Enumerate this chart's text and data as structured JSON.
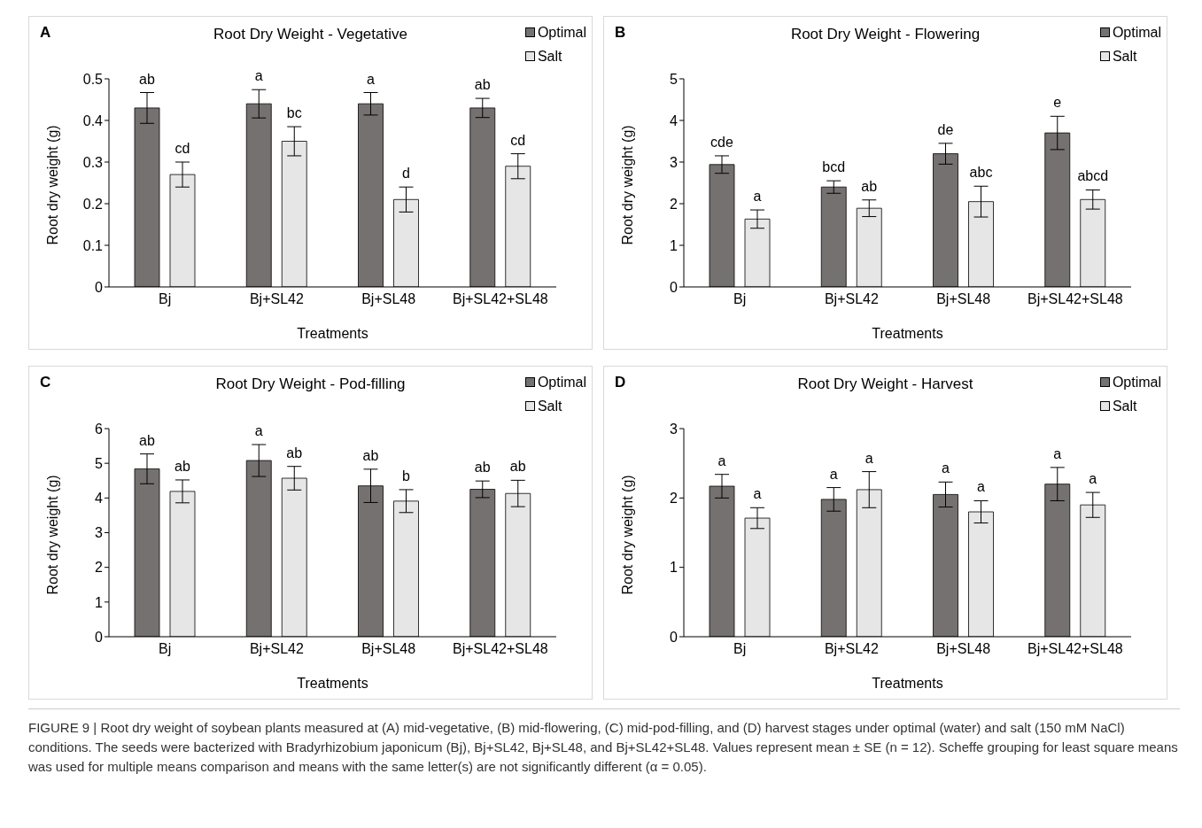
{
  "chart_data": [
    {
      "type": "bar",
      "title": "Root Dry Weight - Vegetative",
      "xlabel": "Treatments",
      "ylabel": "Root dry weight (g)",
      "annotations": [
        "A"
      ],
      "categories": [
        "Bj",
        "Bj+SL42",
        "Bj+SL48",
        "Bj+SL42+SL48"
      ],
      "ylim": [
        0,
        0.5
      ],
      "yticks": [
        0,
        0.1,
        0.2,
        0.3,
        0.4,
        0.5
      ],
      "legend": "top right",
      "series": [
        {
          "name": "Optimal",
          "color": "#767171",
          "values": [
            0.43,
            0.44,
            0.44,
            0.43
          ],
          "errors": [
            0.037,
            0.034,
            0.027,
            0.023
          ],
          "value_labels": [
            "ab",
            "a",
            "a",
            "ab"
          ]
        },
        {
          "name": "Salt",
          "color": "#e7e6e6",
          "values": [
            0.27,
            0.35,
            0.21,
            0.29
          ],
          "errors": [
            0.03,
            0.035,
            0.03,
            0.03
          ],
          "value_labels": [
            "cd",
            "bc",
            "d",
            "cd"
          ]
        }
      ]
    },
    {
      "type": "bar",
      "title": "Root Dry Weight - Flowering",
      "xlabel": "Treatments",
      "ylabel": "Root dry weight (g)",
      "annotations": [
        "B"
      ],
      "categories": [
        "Bj",
        "Bj+SL42",
        "Bj+SL48",
        "Bj+SL42+SL48"
      ],
      "ylim": [
        0,
        5
      ],
      "yticks": [
        0,
        1,
        2,
        3,
        4,
        5
      ],
      "legend": "top right",
      "series": [
        {
          "name": "Optimal",
          "color": "#767171",
          "values": [
            2.94,
            2.4,
            3.2,
            3.7
          ],
          "errors": [
            0.21,
            0.15,
            0.25,
            0.4
          ],
          "value_labels": [
            "cde",
            "bcd",
            "de",
            "e"
          ]
        },
        {
          "name": "Salt",
          "color": "#e7e6e6",
          "values": [
            1.63,
            1.89,
            2.05,
            2.1
          ],
          "errors": [
            0.22,
            0.2,
            0.37,
            0.23
          ],
          "value_labels": [
            "a",
            "ab",
            "abc",
            "abcd"
          ]
        }
      ]
    },
    {
      "type": "bar",
      "title": "Root Dry Weight - Pod-filling",
      "xlabel": "Treatments",
      "ylabel": "Root dry weight (g)",
      "annotations": [
        "C"
      ],
      "categories": [
        "Bj",
        "Bj+SL42",
        "Bj+SL48",
        "Bj+SL42+SL48"
      ],
      "ylim": [
        0,
        6
      ],
      "yticks": [
        0,
        1,
        2,
        3,
        4,
        5,
        6
      ],
      "legend": "top right",
      "series": [
        {
          "name": "Optimal",
          "color": "#767171",
          "values": [
            4.84,
            5.08,
            4.35,
            4.25
          ],
          "errors": [
            0.43,
            0.46,
            0.48,
            0.24
          ],
          "value_labels": [
            "ab",
            "a",
            "ab",
            "ab"
          ]
        },
        {
          "name": "Salt",
          "color": "#e7e6e6",
          "values": [
            4.19,
            4.57,
            3.91,
            4.13
          ],
          "errors": [
            0.33,
            0.34,
            0.33,
            0.38
          ],
          "value_labels": [
            "ab",
            "ab",
            "b",
            "ab"
          ]
        }
      ]
    },
    {
      "type": "bar",
      "title": "Root Dry Weight - Harvest",
      "xlabel": "Treatments",
      "ylabel": "Root dry weight (g)",
      "annotations": [
        "D",
        "FIGURE 9 | Root dry weight of soybean plants measured at (A) mid-vegetative, (B) mid-flowering, (C) mid-pod-filling, and (D) harvest stages under optimal (water) and salt (150 mM NaCl) conditions. The seeds were bacterized with Bradyrhizobium japonicum (Bj), Bj+SL42, Bj+SL48, and Bj+SL42+SL48. Values represent mean ± SE (n = 12). Scheffe grouping for least square means was used for multiple means comparison and means with the same letter(s) are not significantly different (α = 0.05)."
      ],
      "categories": [
        "Bj",
        "Bj+SL42",
        "Bj+SL48",
        "Bj+SL42+SL48"
      ],
      "ylim": [
        0,
        3
      ],
      "yticks": [
        0,
        1,
        2,
        3
      ],
      "legend": "top right",
      "series": [
        {
          "name": "Optimal",
          "color": "#767171",
          "values": [
            2.17,
            1.98,
            2.05,
            2.2
          ],
          "errors": [
            0.17,
            0.17,
            0.18,
            0.24
          ],
          "value_labels": [
            "a",
            "a",
            "a",
            "a"
          ]
        },
        {
          "name": "Salt",
          "color": "#e7e6e6",
          "values": [
            1.71,
            2.12,
            1.8,
            1.9
          ],
          "errors": [
            0.15,
            0.26,
            0.16,
            0.18
          ],
          "value_labels": [
            "a",
            "a",
            "a",
            "a"
          ]
        }
      ]
    }
  ]
}
